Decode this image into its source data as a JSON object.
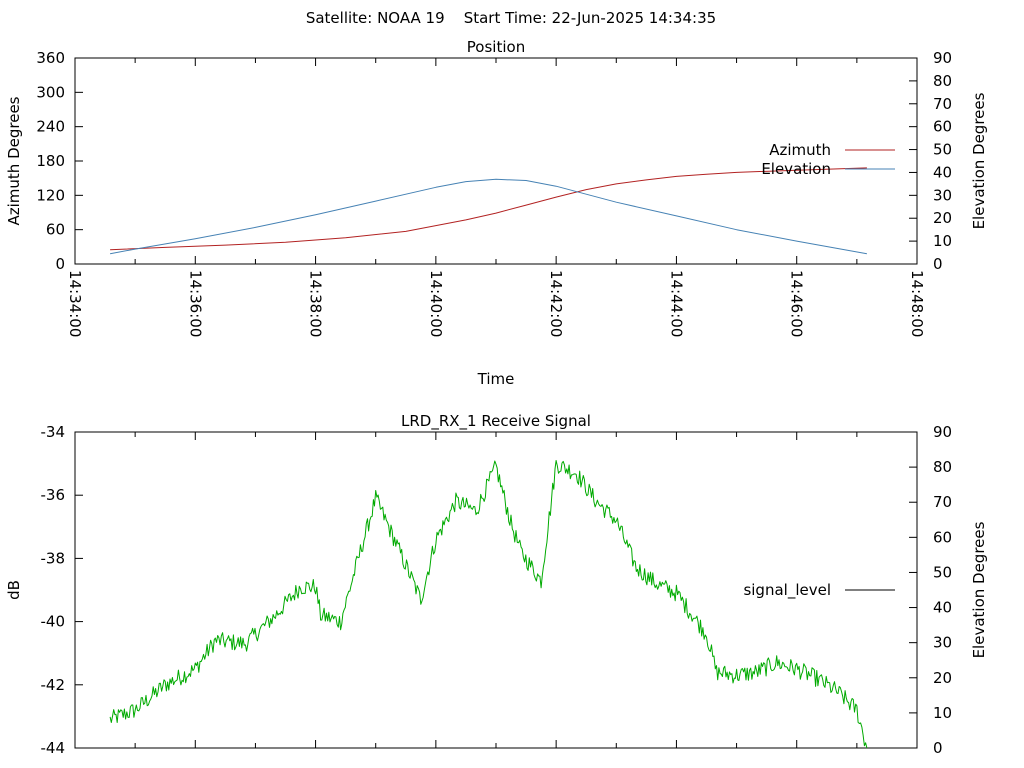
{
  "header": {
    "title": "Satellite: NOAA 19    Start Time: 22-Jun-2025 14:34:35"
  },
  "chart_data": [
    {
      "type": "line",
      "title": "Position",
      "xlabel": "Time",
      "ylabel": "Azimuth Degrees",
      "y2label": "Elevation Degrees",
      "x_ticks": [
        "14:34:00",
        "14:36:00",
        "14:38:00",
        "14:40:00",
        "14:42:00",
        "14:44:00",
        "14:46:00",
        "14:48:00"
      ],
      "xlim": [
        "14:34:00",
        "14:48:00"
      ],
      "ylim": [
        0,
        360
      ],
      "y_ticks": [
        "0",
        "60",
        "120",
        "180",
        "240",
        "300",
        "360"
      ],
      "y2lim": [
        0,
        90
      ],
      "y2_ticks": [
        "0",
        "10",
        "20",
        "30",
        "40",
        "50",
        "60",
        "70",
        "80",
        "90"
      ],
      "grid": false,
      "legend_position": "right",
      "series": [
        {
          "name": "Azimuth",
          "axis": "left",
          "color": "#b22222",
          "x": [
            "14:34:35",
            "14:35:30",
            "14:36:30",
            "14:37:30",
            "14:38:30",
            "14:39:30",
            "14:40:30",
            "14:41:00",
            "14:41:30",
            "14:42:00",
            "14:42:30",
            "14:43:00",
            "14:43:30",
            "14:44:00",
            "14:44:30",
            "14:45:00",
            "14:46:00",
            "14:47:10"
          ],
          "values": [
            25,
            29,
            33,
            38,
            46,
            57,
            77,
            89,
            103,
            117,
            130,
            140,
            147,
            153,
            157,
            160,
            164,
            168
          ]
        },
        {
          "name": "Elevation",
          "axis": "right",
          "color": "#4682b4",
          "x": [
            "14:34:35",
            "14:35:00",
            "14:36:00",
            "14:37:00",
            "14:38:00",
            "14:39:00",
            "14:40:00",
            "14:40:30",
            "14:41:00",
            "14:41:30",
            "14:42:00",
            "14:43:00",
            "14:44:00",
            "14:45:00",
            "14:46:00",
            "14:47:10"
          ],
          "values": [
            4.5,
            6.5,
            11,
            16,
            21.5,
            27.5,
            33.5,
            36,
            37,
            36.5,
            34,
            27,
            21,
            15,
            10,
            4.5
          ]
        }
      ]
    },
    {
      "type": "line",
      "title": "LRD_RX_1 Receive Signal",
      "ylabel": "dB",
      "y2label": "Elevation Degrees",
      "ylim": [
        -44,
        -34
      ],
      "y_ticks": [
        "-34",
        "-36",
        "-38",
        "-40",
        "-42",
        "-44"
      ],
      "y2lim": [
        0,
        90
      ],
      "y2_ticks": [
        "0",
        "10",
        "20",
        "30",
        "40",
        "50",
        "60",
        "70",
        "80",
        "90"
      ],
      "xlim": [
        "14:34:00",
        "14:48:00"
      ],
      "grid": false,
      "legend_position": "right",
      "series": [
        {
          "name": "signal_level",
          "legend_color": "#000000",
          "color": "#00aa00",
          "x": [
            "14:34:35",
            "14:35:00",
            "14:35:30",
            "14:36:00",
            "14:36:20",
            "14:36:50",
            "14:37:20",
            "14:37:45",
            "14:38:00",
            "14:38:05",
            "14:38:25",
            "14:38:40",
            "14:39:00",
            "14:39:20",
            "14:39:45",
            "14:40:00",
            "14:40:20",
            "14:40:40",
            "14:41:00",
            "14:41:15",
            "14:41:25",
            "14:41:45",
            "14:42:00",
            "14:42:20",
            "14:42:40",
            "14:43:00",
            "14:43:20",
            "14:43:40",
            "14:44:00",
            "14:44:30",
            "14:44:40",
            "14:45:00",
            "14:45:20",
            "14:45:40",
            "14:46:00",
            "14:46:20",
            "14:46:40",
            "14:47:00",
            "14:47:10"
          ],
          "values": [
            -43.1,
            -42.8,
            -42.0,
            -41.5,
            -40.6,
            -40.7,
            -39.8,
            -38.9,
            -38.9,
            -39.8,
            -40.0,
            -38.3,
            -36.1,
            -37.5,
            -39.3,
            -37.4,
            -36.2,
            -36.5,
            -35.1,
            -36.9,
            -37.8,
            -38.7,
            -35.0,
            -35.3,
            -36.2,
            -36.8,
            -38.3,
            -38.8,
            -39.1,
            -40.4,
            -41.6,
            -41.7,
            -41.6,
            -41.3,
            -41.5,
            -41.8,
            -42.2,
            -42.8,
            -44.0
          ]
        }
      ]
    }
  ]
}
